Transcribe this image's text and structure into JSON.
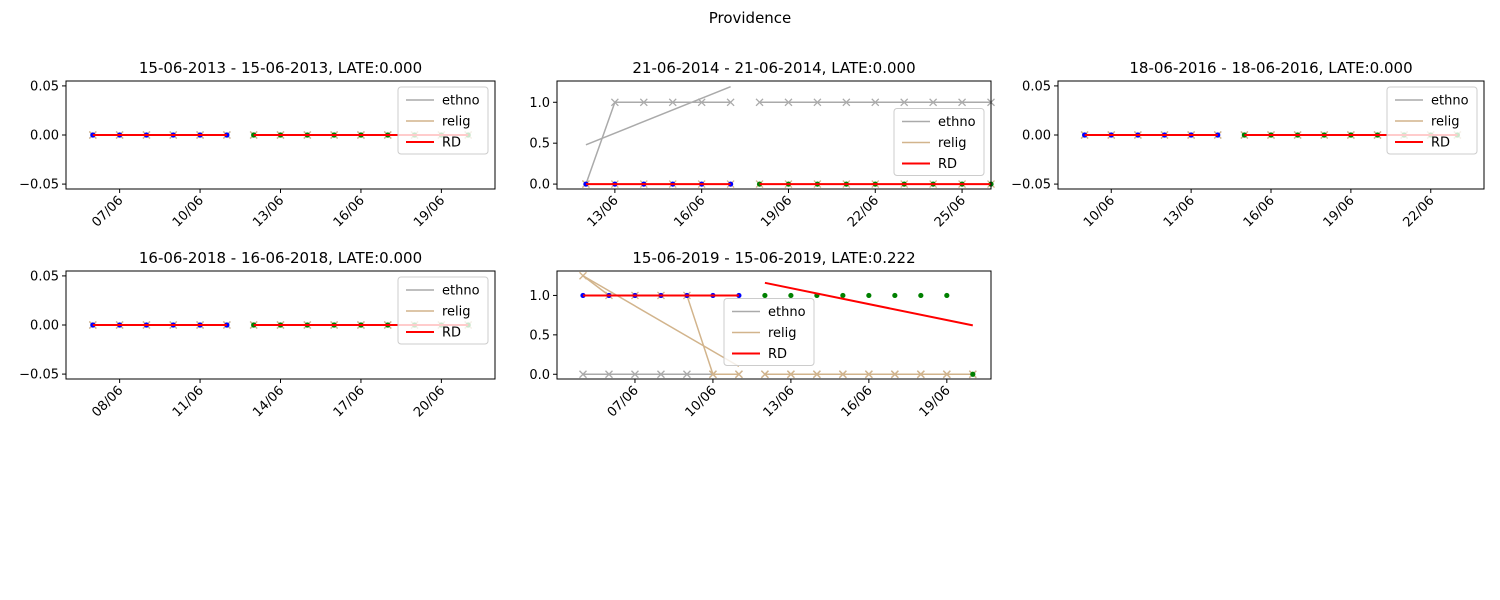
{
  "suptitle": "Providence",
  "legend_entries": [
    {
      "name": "ethno",
      "color": "#aaaaaa"
    },
    {
      "name": "relig",
      "color": "#d2b48c"
    },
    {
      "name": "RD",
      "color": "#ff0000"
    }
  ],
  "marker_colors": {
    "pre": "#0000ff",
    "post": "#008000",
    "cross": "#aaaaaa"
  },
  "chart_data": [
    {
      "type": "line",
      "title": "15-06-2013 - 15-06-2013, LATE:0.000",
      "ylim": [
        -0.055,
        0.055
      ],
      "yticks": [
        -0.05,
        0.0,
        0.05
      ],
      "ytick_labels": [
        "−0.05",
        "0.00",
        "0.05"
      ],
      "xlim": [
        "2013-06-05",
        "2013-06-21"
      ],
      "xticks": [
        "2013-06-07",
        "2013-06-10",
        "2013-06-13",
        "2013-06-16",
        "2013-06-19"
      ],
      "xtick_labels": [
        "07/06",
        "10/06",
        "13/06",
        "16/06",
        "19/06"
      ],
      "legend_loc": "upper right",
      "pre": {
        "dates": [
          "2013-06-06",
          "2013-06-07",
          "2013-06-08",
          "2013-06-09",
          "2013-06-10",
          "2013-06-11"
        ],
        "ethno": [
          0,
          0,
          0,
          0,
          0,
          0
        ],
        "relig": [
          0,
          0,
          0,
          0,
          0,
          0
        ],
        "rd_line": [
          0,
          0
        ]
      },
      "post": {
        "dates": [
          "2013-06-12",
          "2013-06-13",
          "2013-06-14",
          "2013-06-15",
          "2013-06-16",
          "2013-06-17",
          "2013-06-18",
          "2013-06-19",
          "2013-06-20"
        ],
        "ethno": [
          0,
          0,
          0,
          0,
          0,
          0,
          0,
          0,
          0
        ],
        "relig": [
          0,
          0,
          0,
          0,
          0,
          0,
          0,
          0,
          0
        ],
        "rd_line": [
          0,
          0
        ]
      }
    },
    {
      "type": "line",
      "title": "21-06-2014 - 21-06-2014, LATE:0.000",
      "ylim": [
        -0.06,
        1.26
      ],
      "yticks": [
        0.0,
        0.5,
        1.0
      ],
      "ytick_labels": [
        "0.0",
        "0.5",
        "1.0"
      ],
      "xlim": [
        "2014-06-11",
        "2014-06-26"
      ],
      "xticks": [
        "2014-06-13",
        "2014-06-16",
        "2014-06-19",
        "2014-06-22",
        "2014-06-25"
      ],
      "xtick_labels": [
        "13/06",
        "16/06",
        "19/06",
        "22/06",
        "25/06"
      ],
      "legend_loc": "center right",
      "pre": {
        "dates": [
          "2014-06-12",
          "2014-06-13",
          "2014-06-14",
          "2014-06-15",
          "2014-06-16",
          "2014-06-17"
        ],
        "ethno": [
          0,
          1,
          1,
          1,
          1,
          1
        ],
        "relig": [
          0,
          0,
          0,
          0,
          0,
          0
        ],
        "ethno_fit": [
          0.48,
          1.19
        ],
        "rd_line": [
          0,
          0
        ]
      },
      "post": {
        "dates": [
          "2014-06-18",
          "2014-06-19",
          "2014-06-20",
          "2014-06-21",
          "2014-06-22",
          "2014-06-23",
          "2014-06-24",
          "2014-06-25",
          "2014-06-26"
        ],
        "ethno": [
          1,
          1,
          1,
          1,
          1,
          1,
          1,
          1,
          1
        ],
        "relig": [
          0,
          0,
          0,
          0,
          0,
          0,
          0,
          0,
          0
        ],
        "rd_line": [
          0,
          0
        ]
      }
    },
    {
      "type": "line",
      "title": "18-06-2016 - 18-06-2016, LATE:0.000",
      "ylim": [
        -0.055,
        0.055
      ],
      "yticks": [
        -0.05,
        0.0,
        0.05
      ],
      "ytick_labels": [
        "−0.05",
        "0.00",
        "0.05"
      ],
      "xlim": [
        "2016-06-08",
        "2016-06-24"
      ],
      "xticks": [
        "2016-06-10",
        "2016-06-13",
        "2016-06-16",
        "2016-06-19",
        "2016-06-22"
      ],
      "xtick_labels": [
        "10/06",
        "13/06",
        "16/06",
        "19/06",
        "22/06"
      ],
      "legend_loc": "upper right",
      "pre": {
        "dates": [
          "2016-06-09",
          "2016-06-10",
          "2016-06-11",
          "2016-06-12",
          "2016-06-13",
          "2016-06-14"
        ],
        "ethno": [
          0,
          0,
          0,
          0,
          0,
          0
        ],
        "relig": [
          0,
          0,
          0,
          0,
          0,
          0
        ],
        "rd_line": [
          0,
          0
        ]
      },
      "post": {
        "dates": [
          "2016-06-15",
          "2016-06-16",
          "2016-06-17",
          "2016-06-18",
          "2016-06-19",
          "2016-06-20",
          "2016-06-21",
          "2016-06-22",
          "2016-06-23"
        ],
        "ethno": [
          0,
          0,
          0,
          0,
          0,
          0,
          0,
          0,
          0
        ],
        "relig": [
          0,
          0,
          0,
          0,
          0,
          0,
          0,
          0,
          0
        ],
        "rd_line": [
          0,
          0
        ]
      }
    },
    {
      "type": "line",
      "title": "16-06-2018 - 16-06-2018, LATE:0.000",
      "ylim": [
        -0.055,
        0.055
      ],
      "yticks": [
        -0.05,
        0.0,
        0.05
      ],
      "ytick_labels": [
        "−0.05",
        "0.00",
        "0.05"
      ],
      "xlim": [
        "2018-06-06",
        "2018-06-22"
      ],
      "xticks": [
        "2018-06-08",
        "2018-06-11",
        "2018-06-14",
        "2018-06-17",
        "2018-06-20"
      ],
      "xtick_labels": [
        "08/06",
        "11/06",
        "14/06",
        "17/06",
        "20/06"
      ],
      "legend_loc": "upper right",
      "pre": {
        "dates": [
          "2018-06-07",
          "2018-06-08",
          "2018-06-09",
          "2018-06-10",
          "2018-06-11",
          "2018-06-12"
        ],
        "ethno": [
          0,
          0,
          0,
          0,
          0,
          0
        ],
        "relig": [
          0,
          0,
          0,
          0,
          0,
          0
        ],
        "rd_line": [
          0,
          0
        ]
      },
      "post": {
        "dates": [
          "2018-06-13",
          "2018-06-14",
          "2018-06-15",
          "2018-06-16",
          "2018-06-17",
          "2018-06-18",
          "2018-06-19",
          "2018-06-20",
          "2018-06-21"
        ],
        "ethno": [
          0,
          0,
          0,
          0,
          0,
          0,
          0,
          0,
          0
        ],
        "relig": [
          0,
          0,
          0,
          0,
          0,
          0,
          0,
          0,
          0
        ],
        "rd_line": [
          0,
          0
        ]
      }
    },
    {
      "type": "line",
      "title": "15-06-2019 - 15-06-2019, LATE:0.222",
      "ylim": [
        -0.06,
        1.31
      ],
      "yticks": [
        0.0,
        0.5,
        1.0
      ],
      "ytick_labels": [
        "0.0",
        "0.5",
        "1.0"
      ],
      "xlim": [
        "2019-06-04",
        "2019-06-20.7"
      ],
      "xticks": [
        "2019-06-07",
        "2019-06-10",
        "2019-06-13",
        "2019-06-16",
        "2019-06-19"
      ],
      "xtick_labels": [
        "07/06",
        "10/06",
        "13/06",
        "16/06",
        "19/06"
      ],
      "legend_loc": "center",
      "pre": {
        "dates": [
          "2019-06-05",
          "2019-06-06",
          "2019-06-07",
          "2019-06-08",
          "2019-06-09",
          "2019-06-10",
          "2019-06-11"
        ],
        "ethno": [
          0,
          0,
          0,
          0,
          0,
          0,
          0
        ],
        "relig": [
          1.25,
          1,
          1,
          1,
          1,
          0,
          0
        ],
        "rd": [
          1,
          1,
          1,
          1,
          1,
          1,
          1
        ],
        "relig_fit": [
          1.25,
          0.1
        ],
        "rd_line": [
          1,
          1
        ]
      },
      "post": {
        "dates": [
          "2019-06-12",
          "2019-06-13",
          "2019-06-14",
          "2019-06-15",
          "2019-06-16",
          "2019-06-17",
          "2019-06-18",
          "2019-06-19",
          "2019-06-20"
        ],
        "ethno": [
          0,
          0,
          0,
          0,
          0,
          0,
          0,
          0,
          0
        ],
        "relig": [
          0,
          0,
          0,
          0,
          0,
          0,
          0,
          0,
          0
        ],
        "rd": [
          1,
          1,
          1,
          1,
          1,
          1,
          1,
          1,
          0
        ],
        "rd_line": [
          1.16,
          0.62
        ]
      }
    }
  ]
}
